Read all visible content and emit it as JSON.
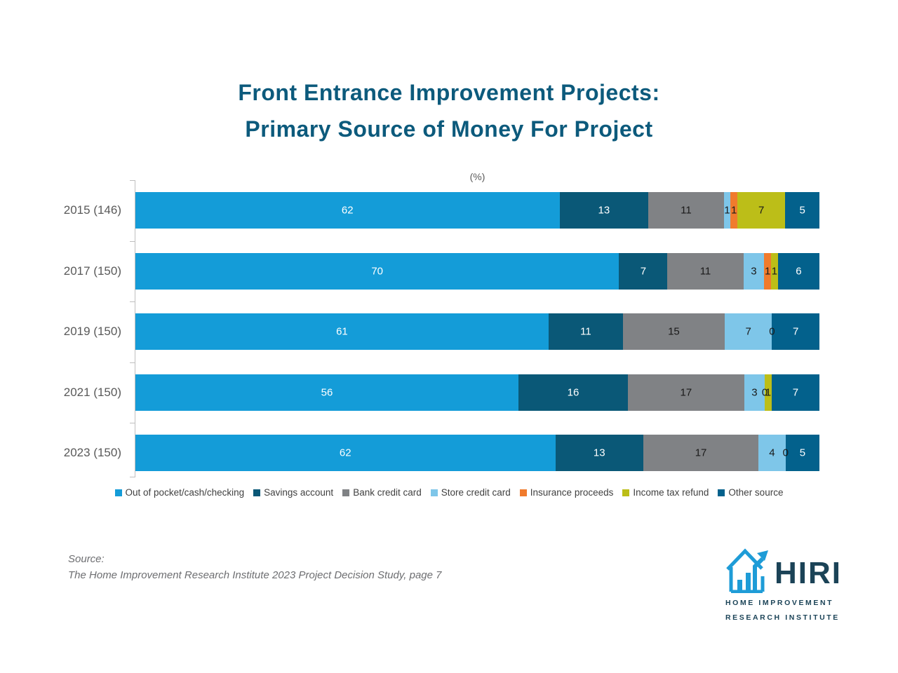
{
  "title": {
    "line1": "Front Entrance Improvement Projects:",
    "line2": "Primary Source of Money For Project"
  },
  "chart_data": {
    "type": "bar",
    "orientation": "horizontal",
    "stacked": true,
    "percent_axis_label": "(%)",
    "xlim": [
      0,
      100
    ],
    "legend_position": "bottom",
    "categories": [
      "2015 (146)",
      "2017 (150)",
      "2019 (150)",
      "2021 (150)",
      "2023 (150)"
    ],
    "series": [
      {
        "name": "Out of pocket/cash/checking",
        "color": "#149CD8",
        "label_color": "#FFFFFF",
        "values": [
          62,
          70,
          61,
          56,
          62
        ]
      },
      {
        "name": "Savings account",
        "color": "#0A5877",
        "label_color": "#FFFFFF",
        "values": [
          13,
          7,
          11,
          16,
          13
        ]
      },
      {
        "name": "Bank credit card",
        "color": "#808285",
        "label_color": "#1A1A1A",
        "values": [
          11,
          11,
          15,
          17,
          17
        ]
      },
      {
        "name": "Store credit card",
        "color": "#7EC6E9",
        "label_color": "#1A1A1A",
        "values": [
          1,
          3,
          7,
          3,
          4
        ]
      },
      {
        "name": "Insurance proceeds",
        "color": "#F07B2D",
        "label_color": "#1A1A1A",
        "values": [
          1,
          1,
          0,
          0,
          0
        ]
      },
      {
        "name": "Income tax refund",
        "color": "#BCBE18",
        "label_color": "#1A1A1A",
        "values": [
          7,
          1,
          0,
          1,
          0
        ]
      },
      {
        "name": "Other source",
        "color": "#03618C",
        "label_color": "#FFFFFF",
        "values": [
          5,
          6,
          7,
          7,
          5
        ]
      }
    ],
    "display_labels": [
      [
        "62",
        "13",
        "11",
        "1",
        "1",
        "7",
        "5"
      ],
      [
        "70",
        "7",
        "11",
        "3",
        "1",
        "1",
        "6"
      ],
      [
        "61",
        "11",
        "15",
        "7",
        "0",
        "",
        "7"
      ],
      [
        "56",
        "16",
        "17",
        "3",
        "0",
        "1",
        "7"
      ],
      [
        "62",
        "13",
        "17",
        "4",
        "0",
        "",
        "5"
      ]
    ]
  },
  "source": {
    "label": "Source:",
    "text": "The Home Improvement Research Institute 2023 Project Decision Study, page 7"
  },
  "logo": {
    "acronym": "HIRI",
    "line1": "HOME IMPROVEMENT",
    "line2": "RESEARCH INSTITUTE"
  }
}
